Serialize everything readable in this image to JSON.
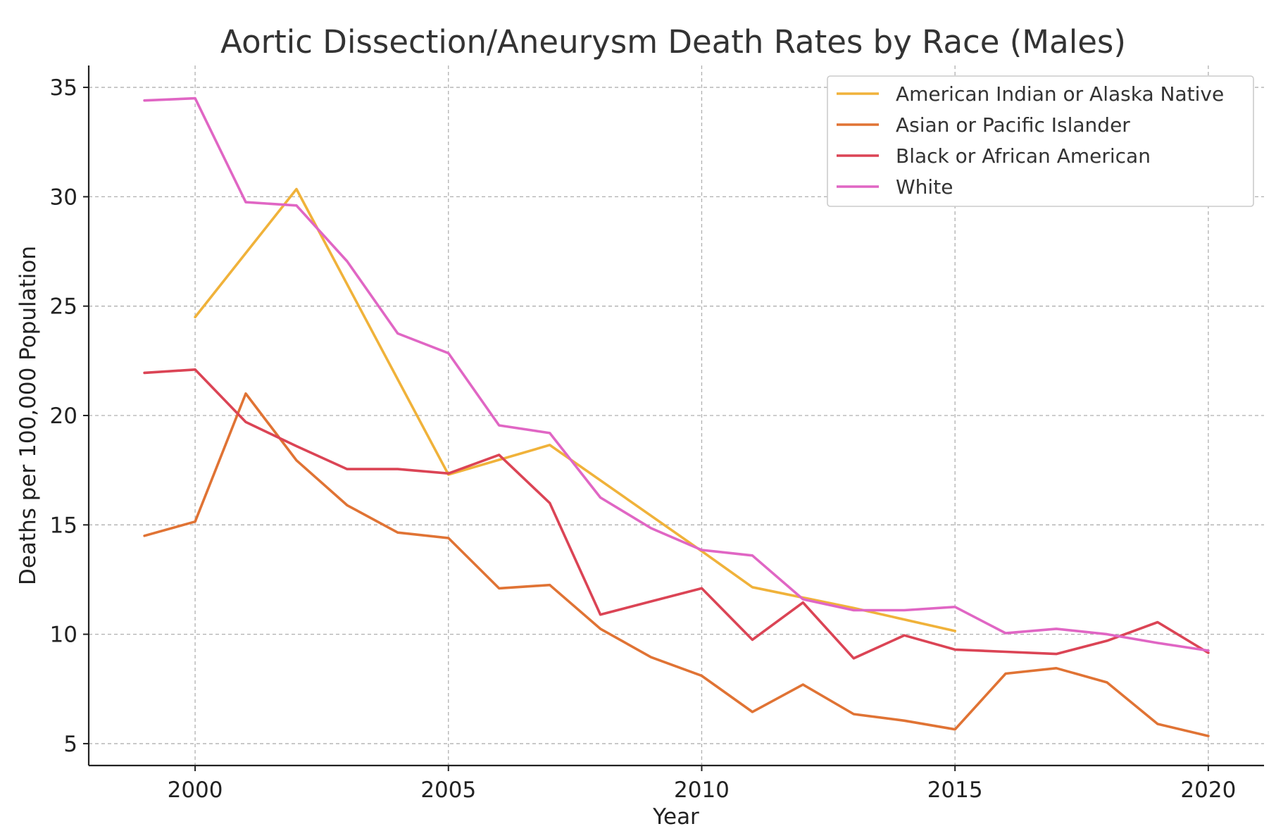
{
  "chart_data": {
    "type": "line",
    "title": "Aortic Dissection/Aneurysm Death Rates by Race (Males)",
    "xlabel": "Year",
    "ylabel": "Deaths per 100,000 Population",
    "xlim": [
      1997.9,
      2021.1
    ],
    "ylim": [
      4.0,
      36.0
    ],
    "xticks": [
      2000,
      2005,
      2010,
      2015,
      2020
    ],
    "yticks": [
      5,
      10,
      15,
      20,
      25,
      30,
      35
    ],
    "grid": true,
    "legend_position": "top-right",
    "series": [
      {
        "name": "American Indian or Alaska Native",
        "color": "#f0b23a",
        "points": [
          [
            2000,
            24.5
          ],
          [
            2002,
            30.35
          ],
          [
            2005,
            17.3
          ],
          [
            2007,
            18.65
          ],
          [
            2010,
            13.8
          ],
          [
            2011,
            12.15
          ],
          [
            2013,
            11.2
          ],
          [
            2015,
            10.15
          ]
        ]
      },
      {
        "name": "Asian or Pacific Islander",
        "color": "#e07334",
        "points": [
          [
            1999,
            14.5
          ],
          [
            2000,
            15.15
          ],
          [
            2001,
            21.0
          ],
          [
            2002,
            17.95
          ],
          [
            2003,
            15.9
          ],
          [
            2004,
            14.65
          ],
          [
            2005,
            14.4
          ],
          [
            2006,
            12.1
          ],
          [
            2007,
            12.25
          ],
          [
            2008,
            10.25
          ],
          [
            2009,
            8.95
          ],
          [
            2010,
            8.1
          ],
          [
            2011,
            6.45
          ],
          [
            2012,
            7.7
          ],
          [
            2013,
            6.35
          ],
          [
            2014,
            6.05
          ],
          [
            2015,
            5.65
          ],
          [
            2016,
            8.2
          ],
          [
            2017,
            8.45
          ],
          [
            2018,
            7.8
          ],
          [
            2019,
            5.9
          ],
          [
            2020,
            5.35
          ]
        ]
      },
      {
        "name": "Black or African American",
        "color": "#db4455",
        "points": [
          [
            1999,
            21.95
          ],
          [
            2000,
            22.1
          ],
          [
            2001,
            19.7
          ],
          [
            2002,
            18.6
          ],
          [
            2003,
            17.55
          ],
          [
            2004,
            17.55
          ],
          [
            2005,
            17.35
          ],
          [
            2006,
            18.2
          ],
          [
            2007,
            16.0
          ],
          [
            2008,
            10.9
          ],
          [
            2009,
            11.5
          ],
          [
            2010,
            12.1
          ],
          [
            2011,
            9.75
          ],
          [
            2012,
            11.45
          ],
          [
            2013,
            8.9
          ],
          [
            2014,
            9.95
          ],
          [
            2015,
            9.3
          ],
          [
            2016,
            9.2
          ],
          [
            2017,
            9.1
          ],
          [
            2018,
            9.7
          ],
          [
            2019,
            10.55
          ],
          [
            2020,
            9.15
          ]
        ]
      },
      {
        "name": "White",
        "color": "#e066c4",
        "points": [
          [
            1999,
            34.4
          ],
          [
            2000,
            34.5
          ],
          [
            2001,
            29.75
          ],
          [
            2002,
            29.6
          ],
          [
            2003,
            27.05
          ],
          [
            2004,
            23.75
          ],
          [
            2005,
            22.85
          ],
          [
            2006,
            19.55
          ],
          [
            2007,
            19.2
          ],
          [
            2008,
            16.25
          ],
          [
            2009,
            14.85
          ],
          [
            2010,
            13.85
          ],
          [
            2011,
            13.6
          ],
          [
            2012,
            11.6
          ],
          [
            2013,
            11.1
          ],
          [
            2014,
            11.1
          ],
          [
            2015,
            11.25
          ],
          [
            2016,
            10.05
          ],
          [
            2017,
            10.25
          ],
          [
            2018,
            10.0
          ],
          [
            2019,
            9.6
          ],
          [
            2020,
            9.25
          ]
        ]
      }
    ]
  }
}
